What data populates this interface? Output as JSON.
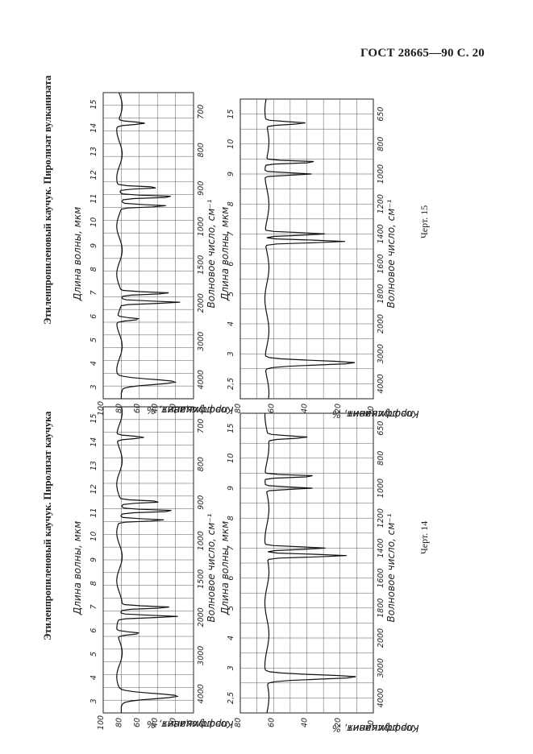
{
  "page_header": "ГОСТ 28665—90 С. 20",
  "figures": [
    {
      "id": "fig14",
      "title": "Этиленпропиленовый каучук. Пиролизат каучука",
      "caption": "Черт. 14",
      "panel_a_wavelength_ticks": [
        "3",
        "4",
        "5",
        "6",
        "7",
        "8",
        "9",
        "10",
        "11",
        "12",
        "13",
        "14",
        "15"
      ],
      "panel_a_wavenumber_ticks": [
        "4000",
        "3000",
        "2000",
        "1500",
        "1000",
        "900",
        "800",
        "700"
      ],
      "panel_a_transmission_ticks": [
        "100",
        "80",
        "60",
        "40",
        "20",
        "0"
      ],
      "panel_b_wavelength_ticks": [
        "2,5",
        "3",
        "4",
        "5",
        "6",
        "7",
        "8",
        "9",
        "10",
        "15"
      ],
      "panel_b_wavenumber_ticks": [
        "4000",
        "3000",
        "2000",
        "1800",
        "1600",
        "1400",
        "1200",
        "1000",
        "800",
        "650"
      ],
      "panel_b_transmission_ticks": [
        "80",
        "60",
        "40",
        "20",
        "0"
      ],
      "wavelength_label": "Длина волны, мкм",
      "wavenumber_label": "Волновое число, см⁻¹",
      "transmission_label_line1": "Коэффициент",
      "transmission_label_line2": "пропускания, %"
    },
    {
      "id": "fig15",
      "title": "Этиленпропиленовый каучук. Пиролизат вулканизата",
      "caption": "Черт. 15",
      "panel_a_wavelength_ticks": [
        "3",
        "4",
        "5",
        "6",
        "7",
        "8",
        "9",
        "10",
        "11",
        "12",
        "13",
        "14",
        "15"
      ],
      "panel_a_wavenumber_ticks": [
        "4000",
        "3000",
        "2000",
        "1500",
        "1000",
        "900",
        "800",
        "700"
      ],
      "panel_a_transmission_ticks": [
        "100",
        "80",
        "60",
        "40",
        "20",
        "0"
      ],
      "panel_b_wavelength_ticks": [
        "2,5",
        "3",
        "4",
        "5",
        "6",
        "7",
        "8",
        "9",
        "10",
        "15"
      ],
      "panel_b_wavenumber_ticks": [
        "4000",
        "3000",
        "2000",
        "1800",
        "1600",
        "1400",
        "1200",
        "1000",
        "800",
        "650"
      ],
      "panel_b_transmission_ticks": [
        "80",
        "60",
        "40",
        "20",
        "0"
      ],
      "wavelength_label": "Длина волны, мкм",
      "wavenumber_label": "Волновое число, см⁻¹",
      "transmission_label_line1": "Коэффициент",
      "transmission_label_line2": "пропускания, %"
    }
  ]
}
